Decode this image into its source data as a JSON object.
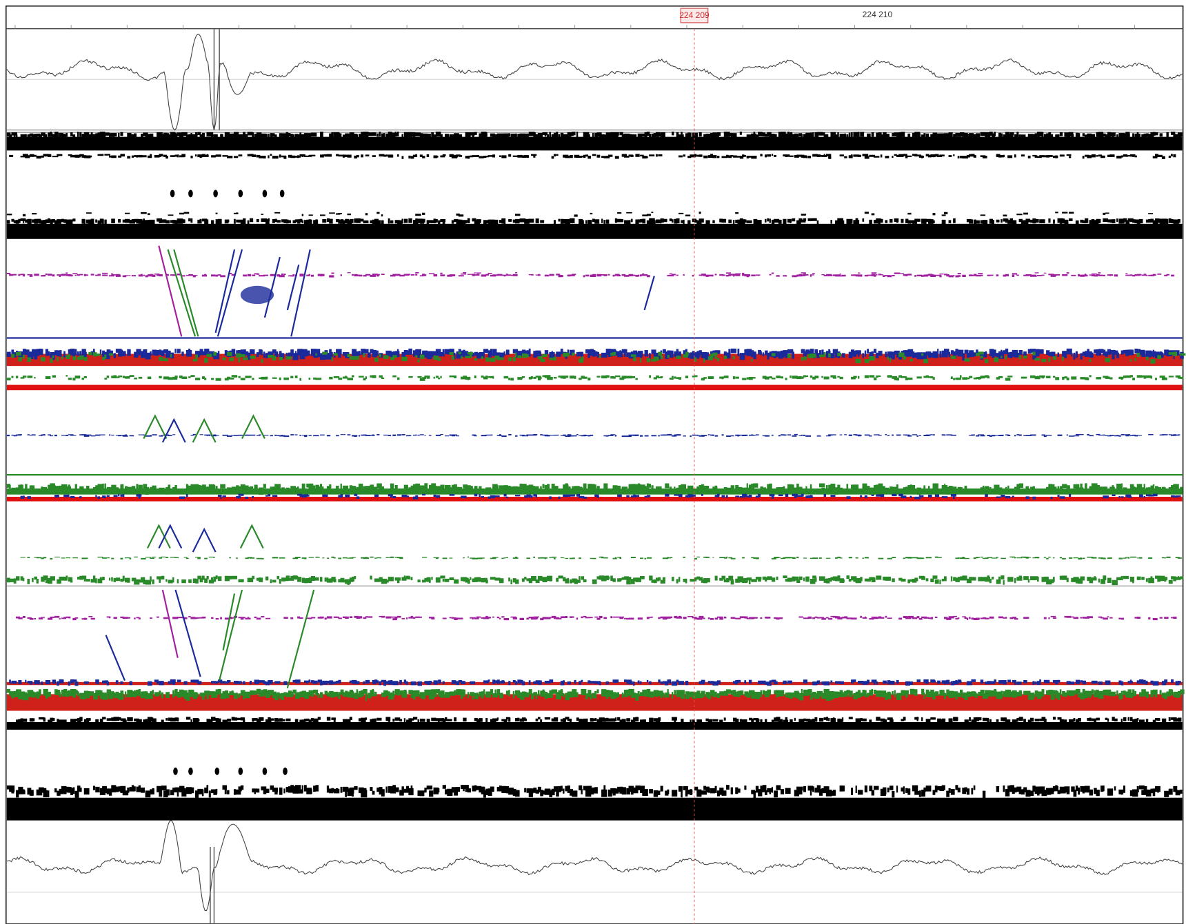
{
  "ruler": {
    "cursor_label": "224 209",
    "tick_label": "224 210"
  }
}
